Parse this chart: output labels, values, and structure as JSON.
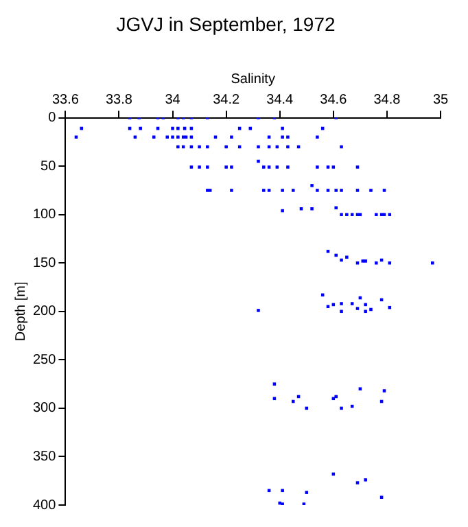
{
  "chart_data": {
    "type": "scatter",
    "title": "JGVJ in September, 1972",
    "xlabel": "Salinity",
    "ylabel": "Depth [m]",
    "xlim": [
      33.6,
      35
    ],
    "xticks": [
      33.6,
      33.8,
      34,
      34.2,
      34.4,
      34.6,
      34.8,
      35
    ],
    "ylim": [
      400,
      0
    ],
    "yticks": [
      0,
      50,
      100,
      150,
      200,
      250,
      300,
      350,
      400
    ],
    "grid": false,
    "legend": false,
    "marker": "square",
    "series": [
      {
        "color": "#0000ff",
        "x": [
          33.84,
          33.875,
          33.945,
          33.965,
          34.02,
          34.04,
          34.07,
          34.13,
          34.32,
          34.38,
          34.61,
          33.66,
          33.84,
          33.88,
          33.945,
          34.0,
          34.02,
          34.045,
          34.07,
          34.25,
          34.29,
          34.41,
          34.56,
          33.64,
          33.86,
          33.93,
          33.98,
          34.0,
          34.02,
          34.04,
          34.05,
          34.07,
          34.16,
          34.22,
          34.36,
          34.41,
          34.43,
          34.54,
          34.02,
          34.04,
          34.07,
          34.1,
          34.13,
          34.2,
          34.25,
          34.32,
          34.36,
          34.39,
          34.43,
          34.47,
          34.63,
          34.07,
          34.1,
          34.13,
          34.2,
          34.22,
          34.32,
          34.34,
          34.36,
          34.39,
          34.43,
          34.54,
          34.58,
          34.6,
          34.69,
          34.13,
          34.14,
          34.22,
          34.34,
          34.36,
          34.41,
          34.45,
          34.52,
          34.54,
          34.58,
          34.61,
          34.63,
          34.69,
          34.74,
          34.79,
          34.41,
          34.48,
          34.52,
          34.61,
          34.63,
          34.65,
          34.67,
          34.69,
          34.7,
          34.76,
          34.78,
          34.79,
          34.81,
          34.58,
          34.61,
          34.63,
          34.65,
          34.69,
          34.71,
          34.72,
          34.76,
          34.78,
          34.81,
          34.97,
          34.56,
          34.7,
          34.78,
          34.58,
          34.6,
          34.63,
          34.63,
          34.67,
          34.69,
          34.72,
          34.72,
          34.74,
          34.81,
          34.32,
          34.38,
          34.38,
          34.45,
          34.47,
          34.5,
          34.6,
          34.61,
          34.63,
          34.67,
          34.7,
          34.78,
          34.79,
          34.6,
          34.36,
          34.41,
          34.5,
          34.69,
          34.72,
          34.78,
          34.4,
          34.41,
          34.49
        ],
        "values": [
          0,
          0,
          0,
          0,
          0,
          0,
          0,
          0,
          0,
          0,
          0,
          11,
          11,
          11,
          11,
          11,
          11,
          11,
          11,
          11,
          11,
          11,
          11,
          20,
          20,
          20,
          20,
          20,
          20,
          20,
          20,
          20,
          20,
          20,
          20,
          20,
          20,
          20,
          30,
          30,
          30,
          30,
          30,
          30,
          30,
          30,
          30,
          30,
          30,
          30,
          30,
          51,
          51,
          51,
          51,
          51,
          45,
          51,
          51,
          51,
          51,
          51,
          51,
          51,
          51,
          75,
          75,
          75,
          75,
          75,
          75,
          75,
          70,
          75,
          75,
          75,
          75,
          75,
          75,
          75,
          96,
          94,
          94,
          93,
          100,
          100,
          100,
          100,
          100,
          100,
          100,
          100,
          100,
          138,
          142,
          147,
          144,
          150,
          148,
          148,
          150,
          147,
          150,
          150,
          183,
          186,
          188,
          195,
          193,
          192,
          200,
          192,
          197,
          193,
          200,
          198,
          196,
          199,
          275,
          290,
          293,
          288,
          300,
          290,
          288,
          300,
          298,
          280,
          293,
          282,
          368,
          385,
          385,
          387,
          377,
          374,
          392,
          398,
          399,
          399
        ]
      }
    ]
  }
}
